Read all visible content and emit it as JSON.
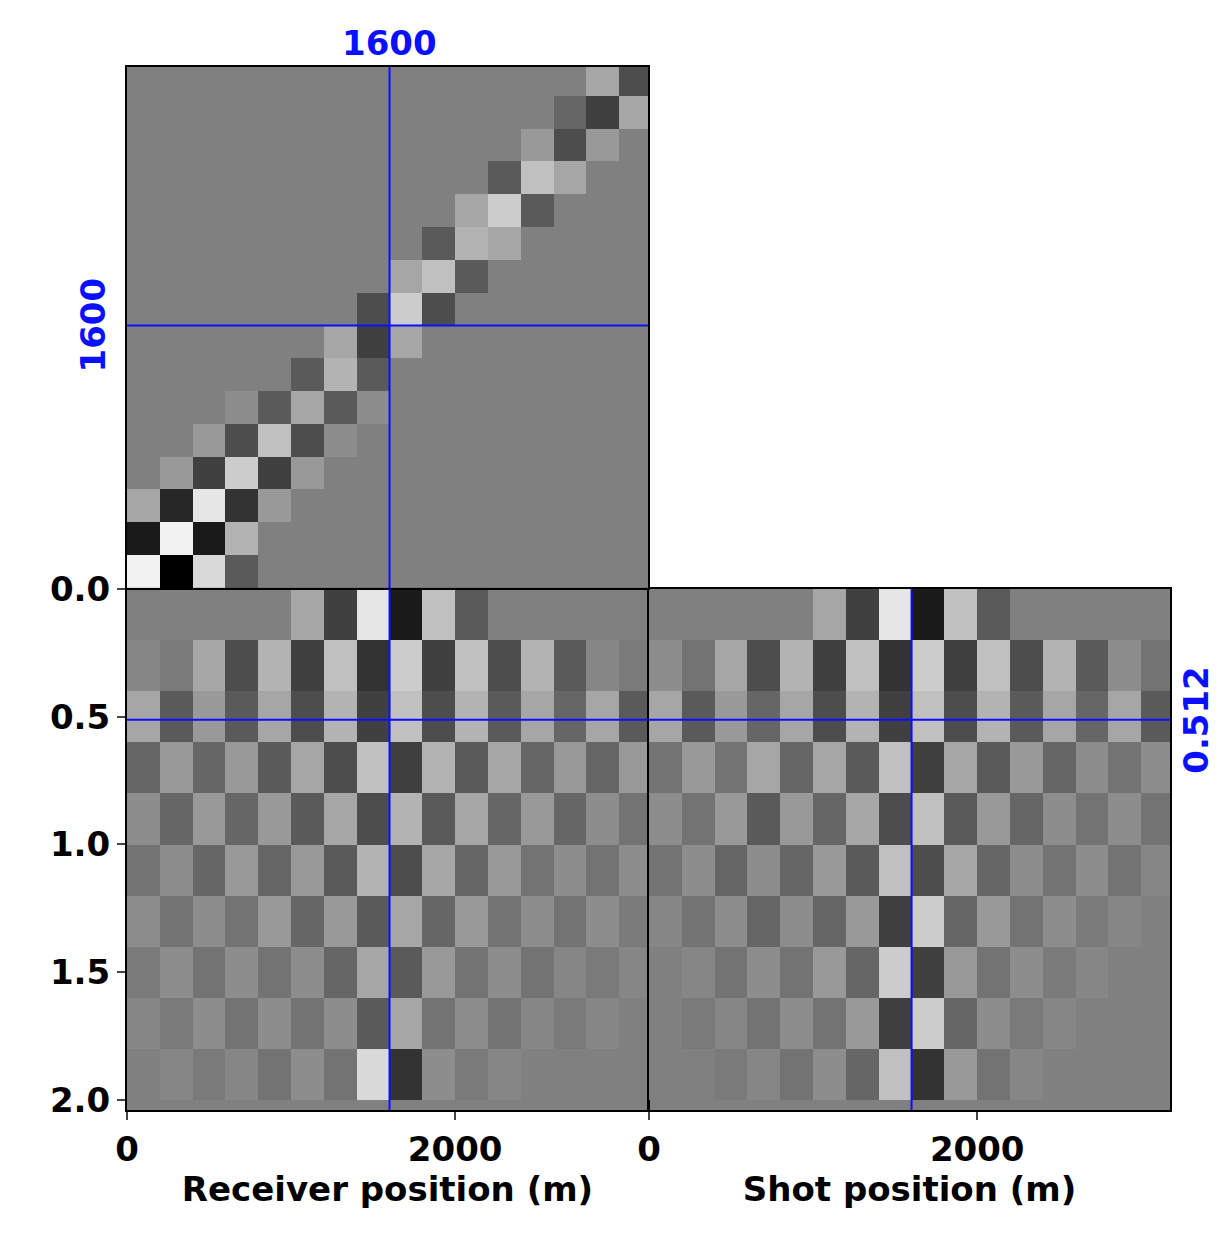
{
  "chart_data": [
    {
      "type": "heatmap",
      "x": [
        100,
        300,
        500,
        700,
        900,
        1100,
        1300,
        1500,
        1700,
        1900,
        2100,
        2300,
        2500,
        2700,
        2900,
        3100
      ],
      "y": [
        100,
        300,
        500,
        700,
        900,
        1100,
        1300,
        1500,
        1700,
        1900,
        2100,
        2300,
        2500,
        2700,
        2900,
        3100
      ],
      "z": [
        [
          0.9,
          -1,
          0.7,
          -0.3,
          0,
          0,
          0,
          0,
          0,
          0,
          0,
          0,
          0,
          0,
          0,
          0
        ],
        [
          -0.8,
          0.9,
          -0.8,
          0.4,
          0,
          0,
          0,
          0,
          0,
          0,
          0,
          0,
          0,
          0,
          0,
          0
        ],
        [
          0.3,
          -0.7,
          0.8,
          -0.6,
          0.2,
          0,
          0,
          0,
          0,
          0,
          0,
          0,
          0,
          0,
          0,
          0
        ],
        [
          0,
          0.2,
          -0.5,
          0.6,
          -0.5,
          0.2,
          0,
          0,
          0,
          0,
          0,
          0,
          0,
          0,
          0,
          0
        ],
        [
          0,
          0,
          0.2,
          -0.4,
          0.5,
          -0.4,
          0.1,
          0,
          0,
          0,
          0,
          0,
          0,
          0,
          0,
          0
        ],
        [
          0,
          0,
          0,
          0.1,
          -0.3,
          0.3,
          -0.3,
          0.1,
          0,
          0,
          0,
          0,
          0,
          0,
          0,
          0
        ],
        [
          0,
          0,
          0,
          0,
          0,
          -0.3,
          0.4,
          -0.3,
          0,
          0,
          0,
          0,
          0,
          0,
          0,
          0
        ],
        [
          0,
          0,
          0,
          0,
          0,
          0,
          0.3,
          -0.5,
          0.3,
          0,
          0,
          0,
          0,
          0,
          0,
          0
        ],
        [
          0,
          0,
          0,
          0,
          0,
          0,
          0,
          -0.4,
          0.6,
          -0.4,
          0,
          0,
          0,
          0,
          0,
          0
        ],
        [
          0,
          0,
          0,
          0,
          0,
          0,
          0,
          0,
          0.3,
          0.5,
          -0.3,
          0,
          0,
          0,
          0,
          0
        ],
        [
          0,
          0,
          0,
          0,
          0,
          0,
          0,
          0,
          0,
          -0.3,
          0.4,
          0.3,
          0,
          0,
          0,
          0
        ],
        [
          0,
          0,
          0,
          0,
          0,
          0,
          0,
          0,
          0,
          0,
          0.3,
          0.6,
          -0.3,
          0,
          0,
          0
        ],
        [
          0,
          0,
          0,
          0,
          0,
          0,
          0,
          0,
          0,
          0,
          0,
          -0.3,
          0.5,
          0.3,
          0,
          0
        ],
        [
          0,
          0,
          0,
          0,
          0,
          0,
          0,
          0,
          0,
          0,
          0,
          0,
          0.2,
          -0.4,
          0.2,
          0
        ],
        [
          0,
          0,
          0,
          0,
          0,
          0,
          0,
          0,
          0,
          0,
          0,
          0,
          0,
          -0.2,
          -0.5,
          0.3
        ],
        [
          0,
          0,
          0,
          0,
          0,
          0,
          0,
          0,
          0,
          0,
          0,
          0,
          0,
          0,
          0.3,
          -0.4
        ]
      ],
      "zlim": [
        -1,
        1
      ],
      "xlim": [
        0,
        3175
      ],
      "ylim": [
        0,
        3175
      ],
      "tick_labels": false,
      "crosshair": {
        "x": 1600,
        "y": 1600
      }
    },
    {
      "type": "heatmap",
      "x_label": "Receiver position (m)",
      "x": [
        100,
        300,
        500,
        700,
        900,
        1100,
        1300,
        1500,
        1700,
        1900,
        2100,
        2300,
        2500,
        2700,
        2900,
        3100
      ],
      "y": [
        0.1,
        0.3,
        0.5,
        0.7,
        0.9,
        1.1,
        1.3,
        1.5,
        1.7,
        1.9
      ],
      "z": [
        [
          0,
          0,
          0,
          0,
          0,
          0.3,
          -0.5,
          0.8,
          -0.8,
          0.5,
          -0.3,
          0,
          0,
          0,
          0,
          0
        ],
        [
          0.05,
          -0.05,
          0.3,
          -0.4,
          0.4,
          -0.5,
          0.5,
          -0.6,
          0.6,
          -0.5,
          0.5,
          -0.4,
          0.4,
          -0.3,
          0.05,
          -0.05
        ],
        [
          0.3,
          -0.3,
          0.2,
          -0.3,
          0.3,
          -0.4,
          0.4,
          -0.5,
          0.5,
          -0.4,
          0.4,
          -0.3,
          0.3,
          -0.2,
          0.3,
          -0.3
        ],
        [
          -0.2,
          0.2,
          -0.2,
          0.2,
          -0.3,
          0.3,
          -0.4,
          0.5,
          -0.5,
          0.4,
          -0.3,
          0.3,
          -0.2,
          0.2,
          -0.2,
          0.2
        ],
        [
          0.1,
          -0.2,
          0.2,
          -0.2,
          0.2,
          -0.3,
          0.3,
          -0.4,
          0.4,
          -0.3,
          0.3,
          -0.2,
          0.2,
          -0.2,
          0.1,
          -0.1
        ],
        [
          -0.1,
          0.1,
          -0.2,
          0.2,
          -0.2,
          0.2,
          -0.3,
          0.4,
          -0.4,
          0.3,
          -0.2,
          0.2,
          -0.1,
          0.1,
          -0.1,
          0.1
        ],
        [
          0.1,
          -0.1,
          0.1,
          -0.1,
          0.2,
          -0.2,
          0.2,
          -0.3,
          0.3,
          -0.2,
          0.2,
          -0.1,
          0.1,
          -0.1,
          0.1,
          -0.05
        ],
        [
          -0.05,
          0.1,
          -0.1,
          0.1,
          -0.1,
          0.1,
          -0.2,
          0.3,
          -0.3,
          0.2,
          -0.1,
          0.1,
          -0.1,
          0.05,
          -0.05,
          0.05
        ],
        [
          0.05,
          -0.05,
          0.1,
          -0.1,
          0.1,
          -0.1,
          0.1,
          -0.3,
          0.3,
          -0.1,
          0.1,
          -0.1,
          0.05,
          -0.05,
          0.05,
          0
        ],
        [
          0,
          0.05,
          -0.05,
          0.05,
          -0.1,
          0.1,
          -0.1,
          0.7,
          -0.6,
          0.1,
          -0.05,
          0.05,
          0,
          0,
          0,
          0
        ]
      ],
      "zlim": [
        -1,
        1
      ],
      "xlim": [
        0,
        3175
      ],
      "ylim": [
        2.04,
        0
      ],
      "xticks": [
        0,
        2000
      ],
      "yticks": [
        {
          "value": 0,
          "label": "0.0"
        },
        0.5,
        {
          "value": 1,
          "label": "1.0"
        },
        1.5,
        {
          "value": 2,
          "label": "2.0"
        }
      ],
      "tick_labels": true,
      "crosshair": {
        "x": 1600,
        "y": 0.512
      }
    },
    {
      "type": "heatmap",
      "x_label": "Shot position (m)",
      "x": [
        100,
        300,
        500,
        700,
        900,
        1100,
        1300,
        1500,
        1700,
        1900,
        2100,
        2300,
        2500,
        2700,
        2900,
        3100
      ],
      "y": [
        0.1,
        0.3,
        0.5,
        0.7,
        0.9,
        1.1,
        1.3,
        1.5,
        1.7,
        1.9
      ],
      "z": [
        [
          0,
          0,
          0,
          0,
          0,
          0.3,
          -0.5,
          0.8,
          -0.8,
          0.5,
          -0.3,
          0,
          0,
          0,
          0,
          0
        ],
        [
          0.1,
          -0.1,
          0.3,
          -0.4,
          0.4,
          -0.5,
          0.5,
          -0.6,
          0.6,
          -0.5,
          0.5,
          -0.4,
          0.4,
          -0.3,
          0.1,
          -0.1
        ],
        [
          0.3,
          -0.3,
          0.2,
          -0.2,
          0.3,
          -0.4,
          0.4,
          -0.5,
          0.5,
          -0.4,
          0.4,
          -0.3,
          0.3,
          -0.2,
          0.3,
          -0.3
        ],
        [
          -0.1,
          0.2,
          -0.1,
          0.3,
          -0.2,
          0.3,
          -0.3,
          0.5,
          -0.5,
          0.3,
          -0.3,
          0.2,
          -0.2,
          0.1,
          -0.1,
          0.1
        ],
        [
          0.1,
          -0.1,
          0.2,
          -0.3,
          0.2,
          -0.2,
          0.3,
          -0.4,
          0.5,
          -0.3,
          0.2,
          -0.2,
          0.1,
          -0.1,
          0.1,
          -0.1
        ],
        [
          -0.1,
          0.1,
          -0.2,
          0.1,
          -0.2,
          0.2,
          -0.3,
          0.5,
          -0.4,
          0.3,
          -0.2,
          0.1,
          -0.1,
          0.1,
          -0.1,
          0.05
        ],
        [
          0.05,
          -0.1,
          0.1,
          -0.2,
          0.1,
          -0.2,
          0.2,
          -0.5,
          0.6,
          -0.2,
          0.2,
          -0.1,
          0.1,
          -0.05,
          0.05,
          0
        ],
        [
          0,
          0.05,
          -0.1,
          0.1,
          -0.1,
          0.2,
          -0.2,
          0.6,
          -0.5,
          0.2,
          -0.1,
          0.1,
          -0.05,
          0.05,
          0,
          0
        ],
        [
          0,
          -0.05,
          0.05,
          -0.1,
          0.1,
          -0.1,
          0.2,
          -0.5,
          0.6,
          -0.2,
          0.1,
          -0.05,
          0.05,
          0,
          0,
          0
        ],
        [
          0,
          0,
          -0.05,
          0.05,
          -0.1,
          0.1,
          -0.2,
          0.5,
          -0.6,
          0.2,
          -0.1,
          0.05,
          0,
          0,
          0,
          0
        ]
      ],
      "zlim": [
        -1,
        1
      ],
      "xlim": [
        0,
        3175
      ],
      "ylim": [
        2.04,
        0
      ],
      "xticks": [
        0,
        2000
      ],
      "tick_labels": "x",
      "crosshair": {
        "x": 1600,
        "y": 0.512
      }
    }
  ]
}
